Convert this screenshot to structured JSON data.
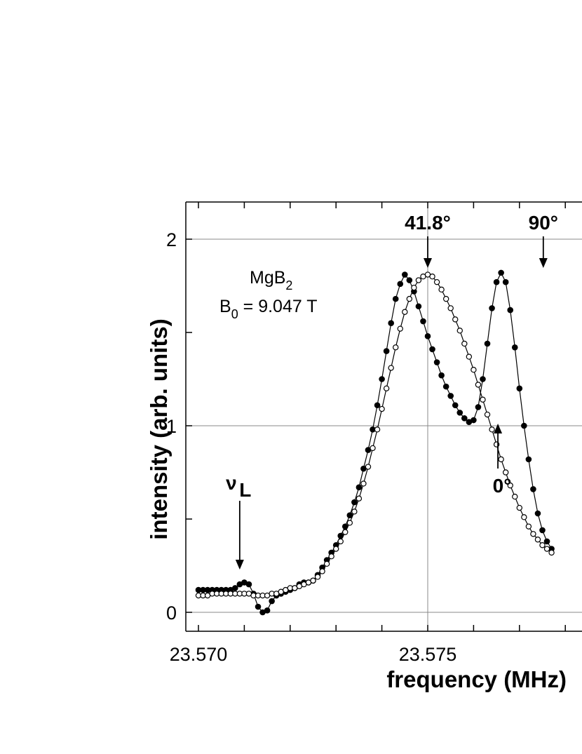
{
  "chart_data": {
    "type": "scatter",
    "xlabel": "frequency (MHz)",
    "ylabel": "intensity (arb. units)",
    "xlim": [
      23.57,
      23.5775
    ],
    "ylim": [
      -0.1,
      2.2
    ],
    "x_ticks": [
      "23.570",
      "23.575"
    ],
    "y_ticks": [
      "0",
      "1",
      "2"
    ],
    "grid": true,
    "sample_label": {
      "name": "MgB",
      "sub": "2"
    },
    "field_label": {
      "name": "B",
      "sub": "0",
      "value": " = 9.047 T"
    },
    "annotations": {
      "peak_41": {
        "text": "41.8°",
        "x": 23.575
      },
      "peak_90": {
        "text": "90°",
        "x": 23.57752
      },
      "dip_0": {
        "text": "0°",
        "x": 23.57653
      },
      "larmor": {
        "symbol": "ν",
        "sub": "L",
        "x": 23.5709
      }
    },
    "series": [
      {
        "marker": "filled",
        "x": [
          23.57,
          23.5701,
          23.5702,
          23.5703,
          23.5704,
          23.5705,
          23.5706,
          23.5707,
          23.5708,
          23.5709,
          23.571,
          23.5711,
          23.5712,
          23.5713,
          23.5714,
          23.5715,
          23.5716,
          23.5717,
          23.5718,
          23.5719,
          23.572,
          23.5721,
          23.5722,
          23.5723,
          23.5724,
          23.5725,
          23.5726,
          23.5727,
          23.5728,
          23.5729,
          23.573,
          23.5731,
          23.5732,
          23.5733,
          23.5734,
          23.5735,
          23.5736,
          23.5737,
          23.5738,
          23.5739,
          23.574,
          23.5741,
          23.5742,
          23.5743,
          23.5744,
          23.5745,
          23.5746,
          23.5747,
          23.5748,
          23.5749,
          23.575,
          23.5751,
          23.5752,
          23.5753,
          23.5754,
          23.5755,
          23.5756,
          23.5757,
          23.5758,
          23.5759,
          23.576,
          23.5761,
          23.5762,
          23.5763,
          23.5764,
          23.5765,
          23.5766,
          23.5767,
          23.5768,
          23.5769,
          23.577,
          23.5771,
          23.5772,
          23.5773,
          23.5774,
          23.5775,
          23.5776,
          23.5777
        ],
        "y": [
          0.12,
          0.12,
          0.12,
          0.12,
          0.12,
          0.12,
          0.12,
          0.12,
          0.13,
          0.15,
          0.16,
          0.15,
          0.1,
          0.03,
          0.0,
          0.01,
          0.06,
          0.09,
          0.1,
          0.11,
          0.12,
          0.13,
          0.15,
          0.16,
          0.16,
          0.17,
          0.2,
          0.24,
          0.28,
          0.32,
          0.36,
          0.41,
          0.46,
          0.52,
          0.59,
          0.67,
          0.77,
          0.87,
          0.98,
          1.11,
          1.25,
          1.4,
          1.55,
          1.68,
          1.76,
          1.81,
          1.78,
          1.72,
          1.64,
          1.56,
          1.48,
          1.41,
          1.34,
          1.27,
          1.21,
          1.16,
          1.11,
          1.07,
          1.04,
          1.02,
          1.03,
          1.1,
          1.25,
          1.44,
          1.63,
          1.77,
          1.82,
          1.77,
          1.62,
          1.42,
          1.2,
          1.0,
          0.82,
          0.66,
          0.53,
          0.44,
          0.38,
          0.34
        ]
      },
      {
        "marker": "open",
        "x": [
          23.57,
          23.5701,
          23.5702,
          23.5703,
          23.5704,
          23.5705,
          23.5706,
          23.5707,
          23.5708,
          23.5709,
          23.571,
          23.5711,
          23.5712,
          23.5713,
          23.5714,
          23.5715,
          23.5716,
          23.5717,
          23.5718,
          23.5719,
          23.572,
          23.5721,
          23.5722,
          23.5723,
          23.5724,
          23.5725,
          23.5726,
          23.5727,
          23.5728,
          23.5729,
          23.573,
          23.5731,
          23.5732,
          23.5733,
          23.5734,
          23.5735,
          23.5736,
          23.5737,
          23.5738,
          23.5739,
          23.574,
          23.5741,
          23.5742,
          23.5743,
          23.5744,
          23.5745,
          23.5746,
          23.5747,
          23.5748,
          23.5749,
          23.575,
          23.5751,
          23.5752,
          23.5753,
          23.5754,
          23.5755,
          23.5756,
          23.5757,
          23.5758,
          23.5759,
          23.576,
          23.5761,
          23.5762,
          23.5763,
          23.5764,
          23.5765,
          23.5766,
          23.5767,
          23.5768,
          23.5769,
          23.577,
          23.5771,
          23.5772,
          23.5773,
          23.5774,
          23.5775,
          23.5776,
          23.5777
        ],
        "y": [
          0.09,
          0.09,
          0.09,
          0.1,
          0.1,
          0.1,
          0.1,
          0.1,
          0.1,
          0.1,
          0.1,
          0.1,
          0.09,
          0.09,
          0.09,
          0.09,
          0.1,
          0.1,
          0.11,
          0.12,
          0.13,
          0.13,
          0.14,
          0.15,
          0.16,
          0.17,
          0.19,
          0.22,
          0.26,
          0.3,
          0.34,
          0.38,
          0.43,
          0.48,
          0.54,
          0.61,
          0.69,
          0.78,
          0.88,
          0.98,
          1.09,
          1.2,
          1.31,
          1.42,
          1.52,
          1.61,
          1.68,
          1.74,
          1.78,
          1.8,
          1.81,
          1.8,
          1.77,
          1.73,
          1.68,
          1.63,
          1.57,
          1.51,
          1.44,
          1.37,
          1.3,
          1.22,
          1.14,
          1.06,
          0.98,
          0.9,
          0.82,
          0.75,
          0.68,
          0.62,
          0.56,
          0.51,
          0.46,
          0.42,
          0.39,
          0.36,
          0.34,
          0.32
        ]
      }
    ]
  }
}
